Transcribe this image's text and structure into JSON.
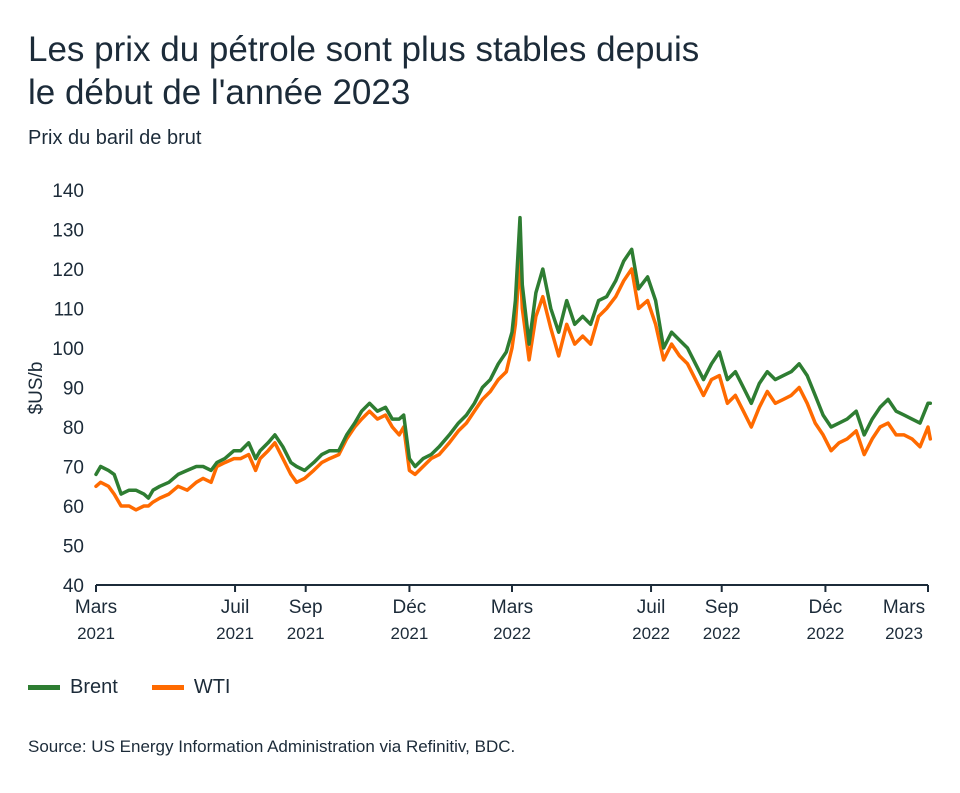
{
  "title_line1": "Les prix du pétrole sont plus stables depuis",
  "title_line2": "le début de l'année 2023",
  "subtitle": "Prix du baril de brut",
  "source": "Source: US Energy Information Administration via Refinitiv, BDC.",
  "chart_data": {
    "type": "line",
    "ylabel": "$US/b",
    "ylim": [
      40,
      140
    ],
    "yticks": [
      40,
      50,
      60,
      70,
      80,
      90,
      100,
      110,
      120,
      130,
      140
    ],
    "xticks": [
      {
        "date": "2021-03-01",
        "line1": "Mars",
        "line2": "2021"
      },
      {
        "date": "2021-07-01",
        "line1": "Juil",
        "line2": "2021"
      },
      {
        "date": "2021-09-01",
        "line1": "Sep",
        "line2": "2021"
      },
      {
        "date": "2021-12-01",
        "line1": "Déc",
        "line2": "2021"
      },
      {
        "date": "2022-03-01",
        "line1": "Mars",
        "line2": "2022"
      },
      {
        "date": "2022-07-01",
        "line1": "Juil",
        "line2": "2022"
      },
      {
        "date": "2022-09-01",
        "line1": "Sep",
        "line2": "2022"
      },
      {
        "date": "2022-12-01",
        "line1": "Déc",
        "line2": "2022"
      },
      {
        "date": "2023-03-01",
        "line1": "Mars",
        "line2": "2023"
      }
    ],
    "grid": false,
    "legend": "bottom-left",
    "series": [
      {
        "name": "Brent",
        "color": "#2e7d32",
        "points": [
          [
            "2021-03-01",
            68
          ],
          [
            "2021-03-05",
            70
          ],
          [
            "2021-03-12",
            69
          ],
          [
            "2021-03-17",
            68
          ],
          [
            "2021-03-23",
            63
          ],
          [
            "2021-03-30",
            64
          ],
          [
            "2021-04-05",
            64
          ],
          [
            "2021-04-12",
            63
          ],
          [
            "2021-04-16",
            62
          ],
          [
            "2021-04-20",
            64
          ],
          [
            "2021-04-26",
            65
          ],
          [
            "2021-05-04",
            66
          ],
          [
            "2021-05-12",
            68
          ],
          [
            "2021-05-20",
            69
          ],
          [
            "2021-05-28",
            70
          ],
          [
            "2021-06-03",
            70
          ],
          [
            "2021-06-10",
            69
          ],
          [
            "2021-06-15",
            71
          ],
          [
            "2021-06-22",
            72
          ],
          [
            "2021-06-30",
            74
          ],
          [
            "2021-07-06",
            74
          ],
          [
            "2021-07-13",
            76
          ],
          [
            "2021-07-19",
            72
          ],
          [
            "2021-07-23",
            74
          ],
          [
            "2021-07-30",
            76
          ],
          [
            "2021-08-05",
            78
          ],
          [
            "2021-08-12",
            75
          ],
          [
            "2021-08-19",
            71
          ],
          [
            "2021-08-24",
            70
          ],
          [
            "2021-08-31",
            69
          ],
          [
            "2021-09-08",
            71
          ],
          [
            "2021-09-15",
            73
          ],
          [
            "2021-09-22",
            74
          ],
          [
            "2021-09-30",
            74
          ],
          [
            "2021-10-07",
            78
          ],
          [
            "2021-10-14",
            81
          ],
          [
            "2021-10-20",
            84
          ],
          [
            "2021-10-27",
            86
          ],
          [
            "2021-11-03",
            84
          ],
          [
            "2021-11-10",
            85
          ],
          [
            "2021-11-16",
            82
          ],
          [
            "2021-11-22",
            82
          ],
          [
            "2021-11-26",
            83
          ],
          [
            "2021-12-01",
            72
          ],
          [
            "2021-12-06",
            70
          ],
          [
            "2021-12-13",
            72
          ],
          [
            "2021-12-20",
            73
          ],
          [
            "2021-12-27",
            75
          ],
          [
            "2022-01-05",
            78
          ],
          [
            "2022-01-13",
            81
          ],
          [
            "2022-01-20",
            83
          ],
          [
            "2022-01-27",
            86
          ],
          [
            "2022-02-03",
            90
          ],
          [
            "2022-02-10",
            92
          ],
          [
            "2022-02-17",
            96
          ],
          [
            "2022-02-24",
            99
          ],
          [
            "2022-03-01",
            104
          ],
          [
            "2022-03-04",
            112
          ],
          [
            "2022-03-08",
            133
          ],
          [
            "2022-03-10",
            116
          ],
          [
            "2022-03-16",
            101
          ],
          [
            "2022-03-22",
            114
          ],
          [
            "2022-03-28",
            120
          ],
          [
            "2022-04-04",
            110
          ],
          [
            "2022-04-11",
            104
          ],
          [
            "2022-04-18",
            112
          ],
          [
            "2022-04-25",
            106
          ],
          [
            "2022-05-02",
            108
          ],
          [
            "2022-05-09",
            106
          ],
          [
            "2022-05-16",
            112
          ],
          [
            "2022-05-23",
            113
          ],
          [
            "2022-05-31",
            117
          ],
          [
            "2022-06-07",
            122
          ],
          [
            "2022-06-14",
            125
          ],
          [
            "2022-06-20",
            115
          ],
          [
            "2022-06-28",
            118
          ],
          [
            "2022-07-05",
            112
          ],
          [
            "2022-07-12",
            100
          ],
          [
            "2022-07-19",
            104
          ],
          [
            "2022-07-26",
            102
          ],
          [
            "2022-08-02",
            100
          ],
          [
            "2022-08-09",
            96
          ],
          [
            "2022-08-16",
            92
          ],
          [
            "2022-08-23",
            96
          ],
          [
            "2022-08-30",
            99
          ],
          [
            "2022-09-06",
            92
          ],
          [
            "2022-09-13",
            94
          ],
          [
            "2022-09-20",
            90
          ],
          [
            "2022-09-27",
            86
          ],
          [
            "2022-10-04",
            91
          ],
          [
            "2022-10-11",
            94
          ],
          [
            "2022-10-18",
            92
          ],
          [
            "2022-10-25",
            93
          ],
          [
            "2022-11-01",
            94
          ],
          [
            "2022-11-08",
            96
          ],
          [
            "2022-11-15",
            93
          ],
          [
            "2022-11-22",
            88
          ],
          [
            "2022-11-29",
            83
          ],
          [
            "2022-12-06",
            80
          ],
          [
            "2022-12-13",
            81
          ],
          [
            "2022-12-20",
            82
          ],
          [
            "2022-12-28",
            84
          ],
          [
            "2023-01-04",
            78
          ],
          [
            "2023-01-11",
            82
          ],
          [
            "2023-01-18",
            85
          ],
          [
            "2023-01-25",
            87
          ],
          [
            "2023-02-01",
            84
          ],
          [
            "2023-02-08",
            83
          ],
          [
            "2023-02-15",
            82
          ],
          [
            "2023-02-22",
            81
          ],
          [
            "2023-03-01",
            86
          ],
          [
            "2023-03-03",
            86
          ]
        ]
      },
      {
        "name": "WTI",
        "color": "#ff6a00",
        "points": [
          [
            "2021-03-01",
            65
          ],
          [
            "2021-03-05",
            66
          ],
          [
            "2021-03-12",
            65
          ],
          [
            "2021-03-17",
            63
          ],
          [
            "2021-03-23",
            60
          ],
          [
            "2021-03-30",
            60
          ],
          [
            "2021-04-05",
            59
          ],
          [
            "2021-04-12",
            60
          ],
          [
            "2021-04-16",
            60
          ],
          [
            "2021-04-20",
            61
          ],
          [
            "2021-04-26",
            62
          ],
          [
            "2021-05-04",
            63
          ],
          [
            "2021-05-12",
            65
          ],
          [
            "2021-05-20",
            64
          ],
          [
            "2021-05-28",
            66
          ],
          [
            "2021-06-03",
            67
          ],
          [
            "2021-06-10",
            66
          ],
          [
            "2021-06-15",
            70
          ],
          [
            "2021-06-22",
            71
          ],
          [
            "2021-06-30",
            72
          ],
          [
            "2021-07-06",
            72
          ],
          [
            "2021-07-13",
            73
          ],
          [
            "2021-07-19",
            69
          ],
          [
            "2021-07-23",
            72
          ],
          [
            "2021-07-30",
            74
          ],
          [
            "2021-08-05",
            76
          ],
          [
            "2021-08-12",
            72
          ],
          [
            "2021-08-19",
            68
          ],
          [
            "2021-08-24",
            66
          ],
          [
            "2021-08-31",
            67
          ],
          [
            "2021-09-08",
            69
          ],
          [
            "2021-09-15",
            71
          ],
          [
            "2021-09-22",
            72
          ],
          [
            "2021-09-30",
            73
          ],
          [
            "2021-10-07",
            77
          ],
          [
            "2021-10-14",
            80
          ],
          [
            "2021-10-20",
            82
          ],
          [
            "2021-10-27",
            84
          ],
          [
            "2021-11-03",
            82
          ],
          [
            "2021-11-10",
            83
          ],
          [
            "2021-11-16",
            80
          ],
          [
            "2021-11-22",
            78
          ],
          [
            "2021-11-26",
            80
          ],
          [
            "2021-12-01",
            69
          ],
          [
            "2021-12-06",
            68
          ],
          [
            "2021-12-13",
            70
          ],
          [
            "2021-12-20",
            72
          ],
          [
            "2021-12-27",
            73
          ],
          [
            "2022-01-05",
            76
          ],
          [
            "2022-01-13",
            79
          ],
          [
            "2022-01-20",
            81
          ],
          [
            "2022-01-27",
            84
          ],
          [
            "2022-02-03",
            87
          ],
          [
            "2022-02-10",
            89
          ],
          [
            "2022-02-17",
            92
          ],
          [
            "2022-02-24",
            94
          ],
          [
            "2022-03-01",
            100
          ],
          [
            "2022-03-04",
            106
          ],
          [
            "2022-03-08",
            123
          ],
          [
            "2022-03-10",
            110
          ],
          [
            "2022-03-16",
            97
          ],
          [
            "2022-03-22",
            108
          ],
          [
            "2022-03-28",
            113
          ],
          [
            "2022-04-04",
            105
          ],
          [
            "2022-04-11",
            98
          ],
          [
            "2022-04-18",
            106
          ],
          [
            "2022-04-25",
            101
          ],
          [
            "2022-05-02",
            103
          ],
          [
            "2022-05-09",
            101
          ],
          [
            "2022-05-16",
            108
          ],
          [
            "2022-05-23",
            110
          ],
          [
            "2022-05-31",
            113
          ],
          [
            "2022-06-07",
            117
          ],
          [
            "2022-06-14",
            120
          ],
          [
            "2022-06-20",
            110
          ],
          [
            "2022-06-28",
            112
          ],
          [
            "2022-07-05",
            106
          ],
          [
            "2022-07-12",
            97
          ],
          [
            "2022-07-19",
            101
          ],
          [
            "2022-07-26",
            98
          ],
          [
            "2022-08-02",
            96
          ],
          [
            "2022-08-09",
            92
          ],
          [
            "2022-08-16",
            88
          ],
          [
            "2022-08-23",
            92
          ],
          [
            "2022-08-30",
            93
          ],
          [
            "2022-09-06",
            86
          ],
          [
            "2022-09-13",
            88
          ],
          [
            "2022-09-20",
            84
          ],
          [
            "2022-09-27",
            80
          ],
          [
            "2022-10-04",
            85
          ],
          [
            "2022-10-11",
            89
          ],
          [
            "2022-10-18",
            86
          ],
          [
            "2022-10-25",
            87
          ],
          [
            "2022-11-01",
            88
          ],
          [
            "2022-11-08",
            90
          ],
          [
            "2022-11-15",
            86
          ],
          [
            "2022-11-22",
            81
          ],
          [
            "2022-11-29",
            78
          ],
          [
            "2022-12-06",
            74
          ],
          [
            "2022-12-13",
            76
          ],
          [
            "2022-12-20",
            77
          ],
          [
            "2022-12-28",
            79
          ],
          [
            "2023-01-04",
            73
          ],
          [
            "2023-01-11",
            77
          ],
          [
            "2023-01-18",
            80
          ],
          [
            "2023-01-25",
            81
          ],
          [
            "2023-02-01",
            78
          ],
          [
            "2023-02-08",
            78
          ],
          [
            "2023-02-15",
            77
          ],
          [
            "2023-02-22",
            75
          ],
          [
            "2023-03-01",
            80
          ],
          [
            "2023-03-03",
            77
          ]
        ]
      }
    ]
  }
}
